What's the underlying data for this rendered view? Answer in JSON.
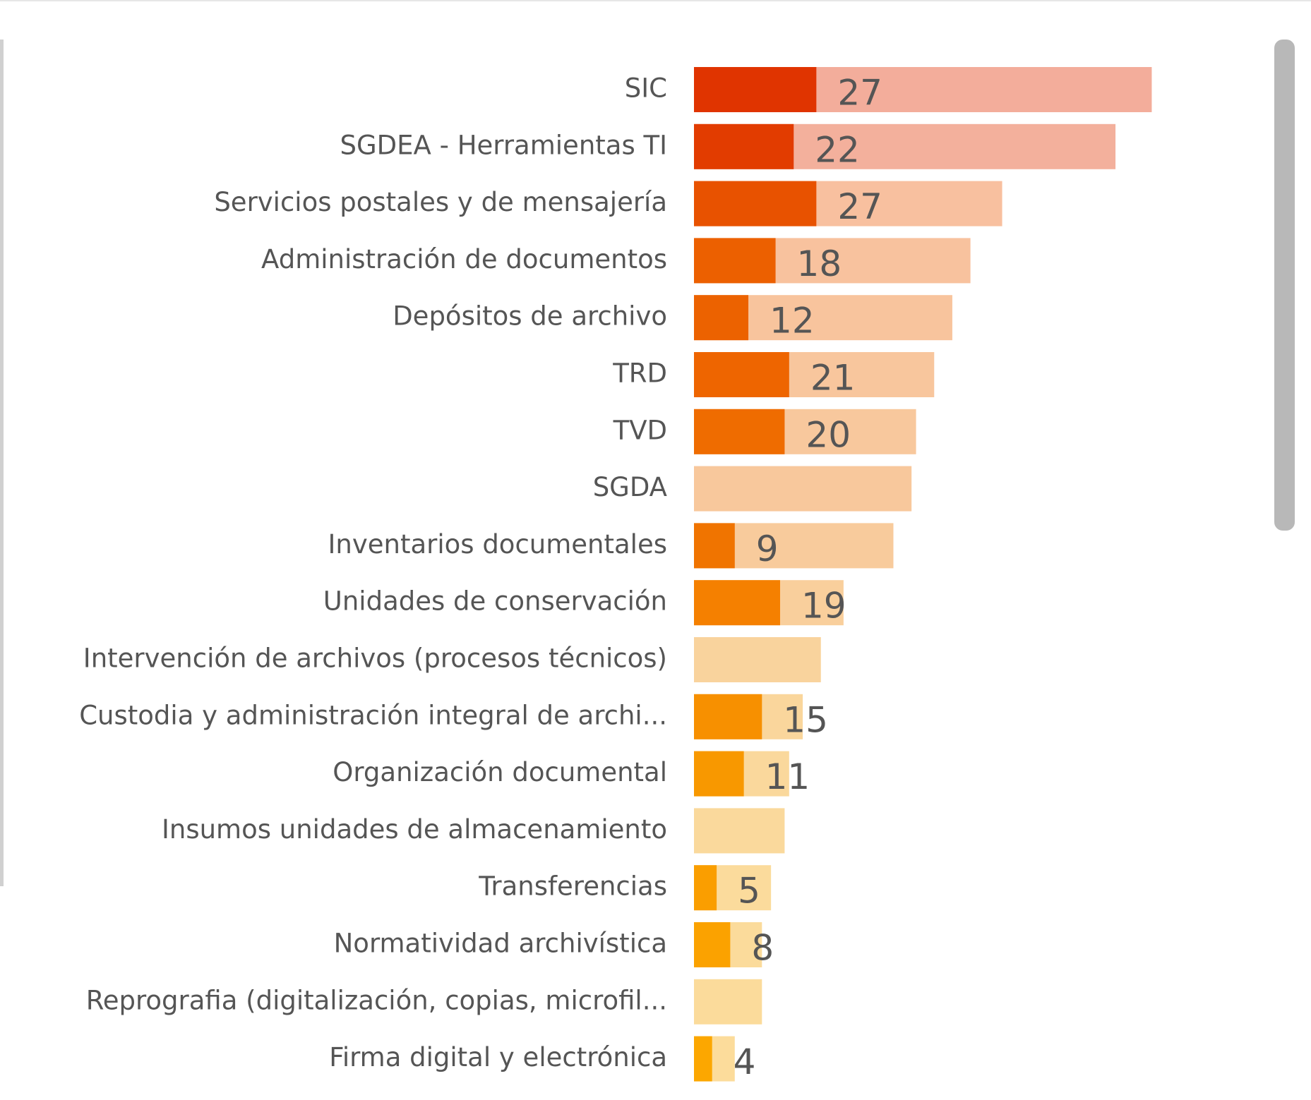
{
  "chart_data": {
    "type": "bar",
    "orientation": "horizontal",
    "categories": [
      "SIC",
      "SGDEA - Herramientas TI",
      "Servicios postales y de mensajería",
      "Administración de documentos",
      "Depósitos de archivo",
      "TRD",
      "TVD",
      "SGDA",
      "Inventarios documentales",
      "Unidades de conservación",
      "Intervención de archivos (procesos técnicos)",
      "Custodia y administración integral de archi...",
      "Organización documental",
      "Insumos unidades de almacenamiento",
      "Transferencias",
      "Normatividad archivística",
      "Reprografia (digitalización, copias, microfil...",
      "Firma digital y electrónica"
    ],
    "series": [
      {
        "values": [
          101,
          93,
          68,
          61,
          57,
          53,
          49,
          48,
          44,
          33,
          28,
          24,
          21,
          20,
          17,
          15,
          15,
          9
        ],
        "colors": [
          "#f3ad9b",
          "#f3b09c",
          "#f8c09f",
          "#f8c29e",
          "#f8c49d",
          "#f8c69d",
          "#f8c89d",
          "#f8c89c",
          "#f8cb9c",
          "#f9cf9c",
          "#f9d39d",
          "#fad69c",
          "#fad89c",
          "#fad99c",
          "#fbdb9c",
          "#fbdb9b",
          "#fbdb9b",
          "#fcdc9b"
        ]
      },
      {
        "values": [
          27,
          22,
          27,
          18,
          12,
          21,
          20,
          null,
          9,
          19,
          null,
          15,
          11,
          null,
          5,
          8,
          null,
          4
        ],
        "colors": [
          "#e03400",
          "#e23c00",
          "#e85200",
          "#ec6000",
          "#ec6200",
          "#ee6500",
          "#ef6c00",
          null,
          "#f07400",
          "#f58000",
          null,
          "#f79000",
          "#f89800",
          null,
          "#fa9e00",
          "#fba200",
          null,
          "#fca700"
        ]
      }
    ]
  }
}
